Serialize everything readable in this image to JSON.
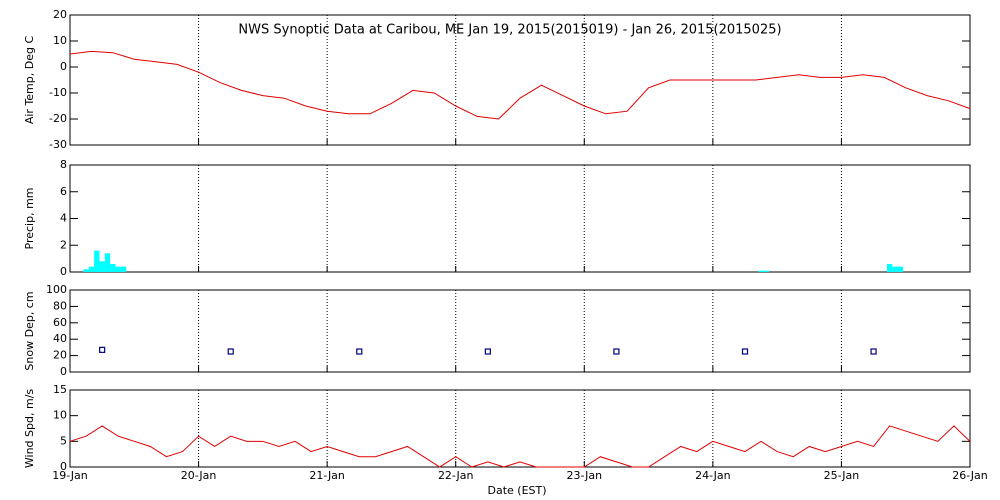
{
  "chart_data": [
    {
      "type": "line",
      "title": "NWS Synoptic Data at Caribou, ME   Jan 19, 2015(2015019) - Jan 26, 2015(2015025)",
      "ylabel": "Air Temp, Deg C",
      "color": "#e00000",
      "grid": true,
      "x": [
        0,
        4,
        8,
        12,
        16,
        20,
        24,
        28,
        32,
        36,
        40,
        44,
        48,
        52,
        56,
        60,
        64,
        68,
        72,
        76,
        80,
        84,
        88,
        92,
        96,
        100,
        104,
        108,
        112,
        116,
        120,
        124,
        128,
        132,
        136,
        140,
        144,
        148,
        152,
        156,
        160,
        164,
        168
      ],
      "values": [
        5,
        6,
        5.5,
        3,
        2,
        1,
        -2,
        -6,
        -9,
        -11,
        -12,
        -15,
        -17,
        -18,
        -18,
        -14,
        -9,
        -10,
        -15,
        -19,
        -20,
        -12,
        -7,
        -11,
        -15,
        -18,
        -17,
        -8,
        -5,
        -5,
        -5,
        -5,
        -5,
        -4,
        -3,
        -4,
        -4,
        -3,
        -4,
        -8,
        -11,
        -13,
        -16
      ],
      "xlim": [
        0,
        168
      ],
      "xticks": [
        0,
        24,
        48,
        72,
        96,
        120,
        144,
        168
      ],
      "ylim": [
        -30,
        20
      ],
      "yticks": [
        -30,
        -20,
        -10,
        0,
        10,
        20
      ]
    },
    {
      "type": "bar",
      "ylabel": "Precip, mm",
      "color": "#00ffff",
      "grid": true,
      "x": [
        3,
        4,
        5,
        6,
        7,
        8,
        9,
        10,
        129,
        130,
        153,
        154,
        155
      ],
      "values": [
        0.2,
        0.4,
        1.6,
        0.8,
        1.4,
        0.6,
        0.4,
        0.4,
        0.1,
        0.1,
        0.6,
        0.4,
        0.4
      ],
      "xlim": [
        0,
        168
      ],
      "xticks": [
        0,
        24,
        48,
        72,
        96,
        120,
        144,
        168
      ],
      "ylim": [
        0,
        8
      ],
      "yticks": [
        0,
        2,
        4,
        6,
        8
      ]
    },
    {
      "type": "scatter",
      "ylabel": "Snow Dep, cm",
      "color": "#000080",
      "grid": true,
      "x": [
        6,
        30,
        54,
        78,
        102,
        126,
        150
      ],
      "values": [
        27,
        25,
        25,
        25,
        25,
        25,
        25
      ],
      "xlim": [
        0,
        168
      ],
      "xticks": [
        0,
        24,
        48,
        72,
        96,
        120,
        144,
        168
      ],
      "ylim": [
        0,
        100
      ],
      "yticks": [
        0,
        20,
        40,
        60,
        80,
        100
      ]
    },
    {
      "type": "line",
      "ylabel": "Wind Spd, m/s",
      "xlabel": "Date (EST)",
      "color": "#e00000",
      "grid": true,
      "x": [
        0,
        3,
        6,
        9,
        12,
        15,
        18,
        21,
        24,
        27,
        30,
        33,
        36,
        39,
        42,
        45,
        48,
        51,
        54,
        57,
        60,
        63,
        66,
        69,
        72,
        75,
        78,
        81,
        84,
        87,
        90,
        93,
        96,
        99,
        102,
        105,
        108,
        111,
        114,
        117,
        120,
        123,
        126,
        129,
        132,
        135,
        138,
        141,
        144,
        147,
        150,
        153,
        156,
        159,
        162,
        165,
        168
      ],
      "values": [
        5,
        6,
        8,
        6,
        5,
        4,
        2,
        3,
        6,
        4,
        6,
        5,
        5,
        4,
        5,
        3,
        4,
        3,
        2,
        2,
        3,
        4,
        2,
        0,
        2,
        0,
        1,
        0,
        1,
        0,
        0,
        0,
        0,
        2,
        1,
        0,
        0,
        2,
        4,
        3,
        5,
        4,
        3,
        5,
        3,
        2,
        4,
        3,
        4,
        5,
        4,
        8,
        7,
        6,
        5,
        8,
        5
      ],
      "xlim": [
        0,
        168
      ],
      "xticks": [
        {
          "value": 0,
          "label": "19-Jan"
        },
        {
          "value": 24,
          "label": "20-Jan"
        },
        {
          "value": 48,
          "label": "21-Jan"
        },
        {
          "value": 72,
          "label": "22-Jan"
        },
        {
          "value": 96,
          "label": "23-Jan"
        },
        {
          "value": 120,
          "label": "24-Jan"
        },
        {
          "value": 144,
          "label": "25-Jan"
        },
        {
          "value": 168,
          "label": "26-Jan"
        }
      ],
      "ylim": [
        0,
        15
      ],
      "yticks": [
        0,
        5,
        10,
        15
      ]
    }
  ]
}
